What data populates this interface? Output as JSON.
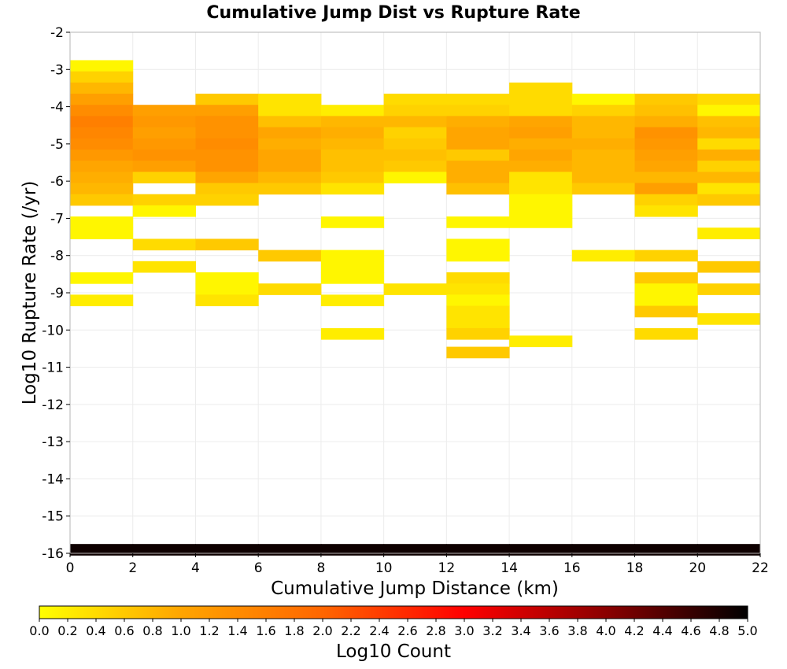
{
  "chart_data": {
    "type": "heatmap",
    "title": "Cumulative Jump Dist vs Rupture Rate",
    "xlabel": "Cumulative Jump Distance (km)",
    "ylabel": "Log10 Rupture Rate (/yr)",
    "xlim": [
      0,
      22
    ],
    "ylim": [
      -16,
      -2
    ],
    "x_ticks": [
      "0",
      "2",
      "4",
      "6",
      "8",
      "10",
      "12",
      "14",
      "16",
      "18",
      "20",
      "22"
    ],
    "y_ticks": [
      "-2",
      "-3",
      "-4",
      "-5",
      "-6",
      "-7",
      "-8",
      "-9",
      "-10",
      "-11",
      "-12",
      "-13",
      "-14",
      "-15",
      "-16"
    ],
    "x_bin_width": 2,
    "y_bin_height": 0.3,
    "grid": true,
    "colorbar": {
      "label": "Log10 Count",
      "min": 0,
      "max": 5,
      "ticks": [
        "0.0",
        "0.2",
        "0.4",
        "0.6",
        "0.8",
        "1.0",
        "1.2",
        "1.4",
        "1.6",
        "1.8",
        "2.0",
        "2.2",
        "2.4",
        "2.6",
        "2.8",
        "3.0",
        "3.2",
        "3.4",
        "3.6",
        "3.8",
        "4.0",
        "4.2",
        "4.4",
        "4.6",
        "4.8",
        "5.0"
      ],
      "colors": [
        "#ffff00",
        "#ffa500",
        "#ff6600",
        "#ff0000",
        "#8b0000",
        "#000000"
      ]
    },
    "cells": [
      {
        "x": 0,
        "y": -2.9,
        "v": 0.1
      },
      {
        "x": 0,
        "y": -3.2,
        "v": 0.5
      },
      {
        "x": 0,
        "y": -3.5,
        "v": 0.8
      },
      {
        "x": 0,
        "y": -3.8,
        "v": 1.1
      },
      {
        "x": 0,
        "y": -4.1,
        "v": 1.4
      },
      {
        "x": 0,
        "y": -4.4,
        "v": 1.6
      },
      {
        "x": 0,
        "y": -4.7,
        "v": 1.5
      },
      {
        "x": 0,
        "y": -5.0,
        "v": 1.4
      },
      {
        "x": 0,
        "y": -5.3,
        "v": 1.2
      },
      {
        "x": 0,
        "y": -5.6,
        "v": 1.0
      },
      {
        "x": 0,
        "y": -5.9,
        "v": 0.9
      },
      {
        "x": 0,
        "y": -6.2,
        "v": 0.8
      },
      {
        "x": 0,
        "y": -6.5,
        "v": 0.6
      },
      {
        "x": 0,
        "y": -7.1,
        "v": 0.1
      },
      {
        "x": 0,
        "y": -7.4,
        "v": 0.1
      },
      {
        "x": 0,
        "y": -8.6,
        "v": 0.1
      },
      {
        "x": 0,
        "y": -9.2,
        "v": 0.2
      },
      {
        "x": 2,
        "y": -4.1,
        "v": 1.1
      },
      {
        "x": 2,
        "y": -4.4,
        "v": 1.2
      },
      {
        "x": 2,
        "y": -4.7,
        "v": 1.1
      },
      {
        "x": 2,
        "y": -5.0,
        "v": 1.2
      },
      {
        "x": 2,
        "y": -5.3,
        "v": 1.3
      },
      {
        "x": 2,
        "y": -5.6,
        "v": 1.1
      },
      {
        "x": 2,
        "y": -5.9,
        "v": 0.5
      },
      {
        "x": 2,
        "y": -6.5,
        "v": 0.5
      },
      {
        "x": 2,
        "y": -6.8,
        "v": 0.1
      },
      {
        "x": 2,
        "y": -7.7,
        "v": 0.4
      },
      {
        "x": 2,
        "y": -8.3,
        "v": 0.3
      },
      {
        "x": 4,
        "y": -3.8,
        "v": 0.6
      },
      {
        "x": 4,
        "y": -4.1,
        "v": 1.1
      },
      {
        "x": 4,
        "y": -4.4,
        "v": 1.3
      },
      {
        "x": 4,
        "y": -4.7,
        "v": 1.3
      },
      {
        "x": 4,
        "y": -5.0,
        "v": 1.4
      },
      {
        "x": 4,
        "y": -5.3,
        "v": 1.3
      },
      {
        "x": 4,
        "y": -5.6,
        "v": 1.3
      },
      {
        "x": 4,
        "y": -5.9,
        "v": 1.0
      },
      {
        "x": 4,
        "y": -6.2,
        "v": 0.6
      },
      {
        "x": 4,
        "y": -6.5,
        "v": 0.5
      },
      {
        "x": 4,
        "y": -7.7,
        "v": 0.6
      },
      {
        "x": 4,
        "y": -8.6,
        "v": 0.1
      },
      {
        "x": 4,
        "y": -8.9,
        "v": 0.1
      },
      {
        "x": 4,
        "y": -9.2,
        "v": 0.3
      },
      {
        "x": 6,
        "y": -3.8,
        "v": 0.3
      },
      {
        "x": 6,
        "y": -4.1,
        "v": 0.3
      },
      {
        "x": 6,
        "y": -4.4,
        "v": 0.7
      },
      {
        "x": 6,
        "y": -4.7,
        "v": 1.0
      },
      {
        "x": 6,
        "y": -5.0,
        "v": 0.9
      },
      {
        "x": 6,
        "y": -5.3,
        "v": 1.0
      },
      {
        "x": 6,
        "y": -5.6,
        "v": 1.0
      },
      {
        "x": 6,
        "y": -5.9,
        "v": 0.8
      },
      {
        "x": 6,
        "y": -6.2,
        "v": 0.6
      },
      {
        "x": 6,
        "y": -8.0,
        "v": 0.6
      },
      {
        "x": 6,
        "y": -8.9,
        "v": 0.4
      },
      {
        "x": 8,
        "y": -4.1,
        "v": 0.2
      },
      {
        "x": 8,
        "y": -4.4,
        "v": 0.8
      },
      {
        "x": 8,
        "y": -4.7,
        "v": 0.9
      },
      {
        "x": 8,
        "y": -5.0,
        "v": 0.8
      },
      {
        "x": 8,
        "y": -5.3,
        "v": 0.7
      },
      {
        "x": 8,
        "y": -5.6,
        "v": 0.7
      },
      {
        "x": 8,
        "y": -5.9,
        "v": 0.6
      },
      {
        "x": 8,
        "y": -6.2,
        "v": 0.3
      },
      {
        "x": 8,
        "y": -7.1,
        "v": 0.1
      },
      {
        "x": 8,
        "y": -8.0,
        "v": 0.1
      },
      {
        "x": 8,
        "y": -8.3,
        "v": 0.1
      },
      {
        "x": 8,
        "y": -8.6,
        "v": 0.1
      },
      {
        "x": 8,
        "y": -9.2,
        "v": 0.2
      },
      {
        "x": 8,
        "y": -10.1,
        "v": 0.2
      },
      {
        "x": 10,
        "y": -3.8,
        "v": 0.4
      },
      {
        "x": 10,
        "y": -4.1,
        "v": 0.5
      },
      {
        "x": 10,
        "y": -4.4,
        "v": 0.8
      },
      {
        "x": 10,
        "y": -4.7,
        "v": 0.5
      },
      {
        "x": 10,
        "y": -5.0,
        "v": 0.6
      },
      {
        "x": 10,
        "y": -5.3,
        "v": 0.7
      },
      {
        "x": 10,
        "y": -5.6,
        "v": 0.6
      },
      {
        "x": 10,
        "y": -5.9,
        "v": 0.1
      },
      {
        "x": 10,
        "y": -8.9,
        "v": 0.3
      },
      {
        "x": 12,
        "y": -3.8,
        "v": 0.4
      },
      {
        "x": 12,
        "y": -4.1,
        "v": 0.5
      },
      {
        "x": 12,
        "y": -4.4,
        "v": 0.9
      },
      {
        "x": 12,
        "y": -4.7,
        "v": 1.0
      },
      {
        "x": 12,
        "y": -5.0,
        "v": 1.0
      },
      {
        "x": 12,
        "y": -5.3,
        "v": 0.6
      },
      {
        "x": 12,
        "y": -5.6,
        "v": 0.9
      },
      {
        "x": 12,
        "y": -5.9,
        "v": 0.9
      },
      {
        "x": 12,
        "y": -6.2,
        "v": 0.7
      },
      {
        "x": 12,
        "y": -7.1,
        "v": 0.1
      },
      {
        "x": 12,
        "y": -7.7,
        "v": 0.1
      },
      {
        "x": 12,
        "y": -8.0,
        "v": 0.1
      },
      {
        "x": 12,
        "y": -8.6,
        "v": 0.4
      },
      {
        "x": 12,
        "y": -8.9,
        "v": 0.3
      },
      {
        "x": 12,
        "y": -9.2,
        "v": 0.1
      },
      {
        "x": 12,
        "y": -9.5,
        "v": 0.3
      },
      {
        "x": 12,
        "y": -9.8,
        "v": 0.3
      },
      {
        "x": 12,
        "y": -10.1,
        "v": 0.5
      },
      {
        "x": 12,
        "y": -10.6,
        "v": 0.6
      },
      {
        "x": 14,
        "y": -3.5,
        "v": 0.4
      },
      {
        "x": 14,
        "y": -3.8,
        "v": 0.4
      },
      {
        "x": 14,
        "y": -4.1,
        "v": 0.4
      },
      {
        "x": 14,
        "y": -4.4,
        "v": 1.0
      },
      {
        "x": 14,
        "y": -4.7,
        "v": 1.1
      },
      {
        "x": 14,
        "y": -5.0,
        "v": 0.9
      },
      {
        "x": 14,
        "y": -5.3,
        "v": 1.0
      },
      {
        "x": 14,
        "y": -5.6,
        "v": 0.9
      },
      {
        "x": 14,
        "y": -5.9,
        "v": 0.3
      },
      {
        "x": 14,
        "y": -6.2,
        "v": 0.3
      },
      {
        "x": 14,
        "y": -6.5,
        "v": 0.1
      },
      {
        "x": 14,
        "y": -6.8,
        "v": 0.1
      },
      {
        "x": 14,
        "y": -7.1,
        "v": 0.1
      },
      {
        "x": 14,
        "y": -10.3,
        "v": 0.2
      },
      {
        "x": 16,
        "y": -3.8,
        "v": 0.1
      },
      {
        "x": 16,
        "y": -4.1,
        "v": 0.5
      },
      {
        "x": 16,
        "y": -4.4,
        "v": 0.8
      },
      {
        "x": 16,
        "y": -4.7,
        "v": 0.8
      },
      {
        "x": 16,
        "y": -5.0,
        "v": 0.9
      },
      {
        "x": 16,
        "y": -5.3,
        "v": 0.8
      },
      {
        "x": 16,
        "y": -5.6,
        "v": 0.8
      },
      {
        "x": 16,
        "y": -5.9,
        "v": 0.8
      },
      {
        "x": 16,
        "y": -6.2,
        "v": 0.6
      },
      {
        "x": 16,
        "y": -8.0,
        "v": 0.2
      },
      {
        "x": 18,
        "y": -3.8,
        "v": 0.6
      },
      {
        "x": 18,
        "y": -4.1,
        "v": 0.7
      },
      {
        "x": 18,
        "y": -4.4,
        "v": 0.9
      },
      {
        "x": 18,
        "y": -4.7,
        "v": 1.3
      },
      {
        "x": 18,
        "y": -5.0,
        "v": 1.2
      },
      {
        "x": 18,
        "y": -5.3,
        "v": 1.1
      },
      {
        "x": 18,
        "y": -5.6,
        "v": 1.0
      },
      {
        "x": 18,
        "y": -5.9,
        "v": 0.8
      },
      {
        "x": 18,
        "y": -6.2,
        "v": 1.1
      },
      {
        "x": 18,
        "y": -6.5,
        "v": 0.5
      },
      {
        "x": 18,
        "y": -6.8,
        "v": 0.3
      },
      {
        "x": 18,
        "y": -8.0,
        "v": 0.5
      },
      {
        "x": 18,
        "y": -8.6,
        "v": 0.6
      },
      {
        "x": 18,
        "y": -8.9,
        "v": 0.1
      },
      {
        "x": 18,
        "y": -9.2,
        "v": 0.1
      },
      {
        "x": 18,
        "y": -9.5,
        "v": 0.6
      },
      {
        "x": 18,
        "y": -10.1,
        "v": 0.4
      },
      {
        "x": 20,
        "y": -3.8,
        "v": 0.4
      },
      {
        "x": 20,
        "y": -4.1,
        "v": 0.1
      },
      {
        "x": 20,
        "y": -4.4,
        "v": 0.7
      },
      {
        "x": 20,
        "y": -4.7,
        "v": 0.8
      },
      {
        "x": 20,
        "y": -5.0,
        "v": 0.4
      },
      {
        "x": 20,
        "y": -5.3,
        "v": 0.9
      },
      {
        "x": 20,
        "y": -5.6,
        "v": 0.5
      },
      {
        "x": 20,
        "y": -5.9,
        "v": 0.8
      },
      {
        "x": 20,
        "y": -6.2,
        "v": 0.3
      },
      {
        "x": 20,
        "y": -6.5,
        "v": 0.6
      },
      {
        "x": 20,
        "y": -7.4,
        "v": 0.2
      },
      {
        "x": 20,
        "y": -8.3,
        "v": 0.6
      },
      {
        "x": 20,
        "y": -8.9,
        "v": 0.5
      },
      {
        "x": 20,
        "y": -9.7,
        "v": 0.3
      },
      {
        "x": 0,
        "y": -15.9,
        "v": 4.9
      },
      {
        "x": 2,
        "y": -15.9,
        "v": 4.9
      },
      {
        "x": 4,
        "y": -15.9,
        "v": 4.9
      },
      {
        "x": 6,
        "y": -15.9,
        "v": 4.9
      },
      {
        "x": 8,
        "y": -15.9,
        "v": 4.9
      },
      {
        "x": 10,
        "y": -15.9,
        "v": 4.9
      },
      {
        "x": 12,
        "y": -15.9,
        "v": 4.9
      },
      {
        "x": 14,
        "y": -15.9,
        "v": 4.9
      },
      {
        "x": 16,
        "y": -15.9,
        "v": 4.9
      },
      {
        "x": 18,
        "y": -15.9,
        "v": 4.9
      },
      {
        "x": 20,
        "y": -15.9,
        "v": 4.9
      }
    ]
  }
}
